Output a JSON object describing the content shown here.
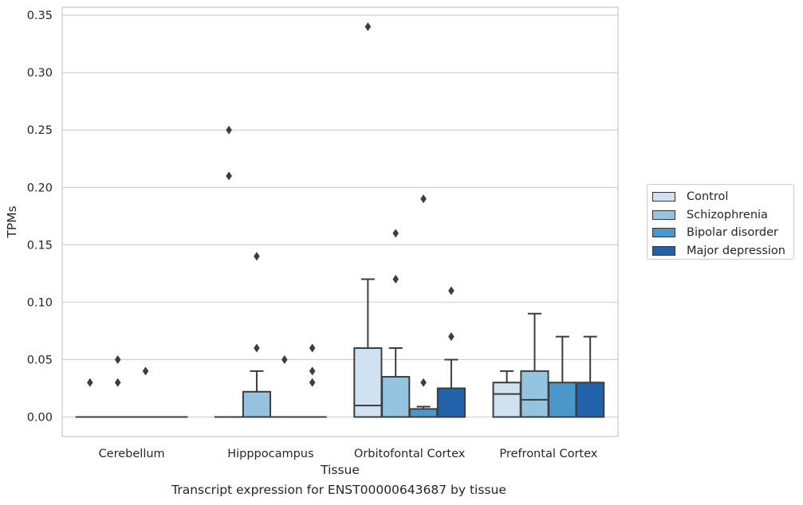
{
  "caption": "Transcript expression for ENST00000643687 by tissue",
  "chart_data": {
    "type": "boxplot",
    "xlabel": "Tissue",
    "ylabel": "TPMs",
    "ylim": [
      -0.017,
      0.357
    ],
    "yticks": [
      0.0,
      0.05,
      0.1,
      0.15,
      0.2,
      0.25,
      0.3,
      0.35
    ],
    "ytick_labels": [
      "0.00",
      "0.05",
      "0.10",
      "0.15",
      "0.20",
      "0.25",
      "0.30",
      "0.35"
    ],
    "grid": "horizontal",
    "legend_position": "right",
    "categories": [
      "Cerebellum",
      "Hipppocampus",
      "Orbitofontal Cortex",
      "Prefrontal Cortex"
    ],
    "series": [
      {
        "name": "Control",
        "color": "#d0e1f2",
        "boxes": [
          {
            "q1": 0,
            "median": 0,
            "q3": 0,
            "whislo": 0,
            "whishi": 0,
            "fliers": [
              0.03
            ]
          },
          {
            "q1": 0,
            "median": 0,
            "q3": 0,
            "whislo": 0,
            "whishi": 0,
            "fliers": [
              0.25,
              0.21
            ]
          },
          {
            "q1": 0,
            "median": 0.01,
            "q3": 0.06,
            "whislo": 0,
            "whishi": 0.12,
            "fliers": [
              0.34
            ]
          },
          {
            "q1": 0,
            "median": 0.02,
            "q3": 0.03,
            "whislo": 0,
            "whishi": 0.04,
            "fliers": []
          }
        ]
      },
      {
        "name": "Schizophrenia",
        "color": "#94c4df",
        "boxes": [
          {
            "q1": 0,
            "median": 0,
            "q3": 0,
            "whislo": 0,
            "whishi": 0,
            "fliers": [
              0.03,
              0.05
            ]
          },
          {
            "q1": 0,
            "median": 0,
            "q3": 0.022,
            "whislo": 0,
            "whishi": 0.04,
            "fliers": [
              0.14,
              0.06
            ]
          },
          {
            "q1": 0,
            "median": 0,
            "q3": 0.035,
            "whislo": 0,
            "whishi": 0.06,
            "fliers": [
              0.16,
              0.12
            ]
          },
          {
            "q1": 0,
            "median": 0.015,
            "q3": 0.04,
            "whislo": 0,
            "whishi": 0.09,
            "fliers": []
          }
        ]
      },
      {
        "name": "Bipolar disorder",
        "color": "#4a98c9",
        "boxes": [
          {
            "q1": 0,
            "median": 0,
            "q3": 0,
            "whislo": 0,
            "whishi": 0,
            "fliers": [
              0.04
            ]
          },
          {
            "q1": 0,
            "median": 0,
            "q3": 0,
            "whislo": 0,
            "whishi": 0,
            "fliers": [
              0.05
            ]
          },
          {
            "q1": 0,
            "median": 0,
            "q3": 0.007,
            "whislo": 0,
            "whishi": 0.009,
            "fliers": [
              0.19,
              0.03
            ]
          },
          {
            "q1": 0,
            "median": 0,
            "q3": 0.03,
            "whislo": 0,
            "whishi": 0.07,
            "fliers": []
          }
        ]
      },
      {
        "name": "Major depression",
        "color": "#2163aa",
        "boxes": [
          {
            "q1": 0,
            "median": 0,
            "q3": 0,
            "whislo": 0,
            "whishi": 0,
            "fliers": []
          },
          {
            "q1": 0,
            "median": 0,
            "q3": 0,
            "whislo": 0,
            "whishi": 0,
            "fliers": [
              0.06,
              0.04,
              0.03
            ]
          },
          {
            "q1": 0,
            "median": 0,
            "q3": 0.025,
            "whislo": 0,
            "whishi": 0.05,
            "fliers": [
              0.11,
              0.07
            ]
          },
          {
            "q1": 0,
            "median": 0,
            "q3": 0.03,
            "whislo": 0,
            "whishi": 0.07,
            "fliers": []
          }
        ]
      }
    ]
  }
}
